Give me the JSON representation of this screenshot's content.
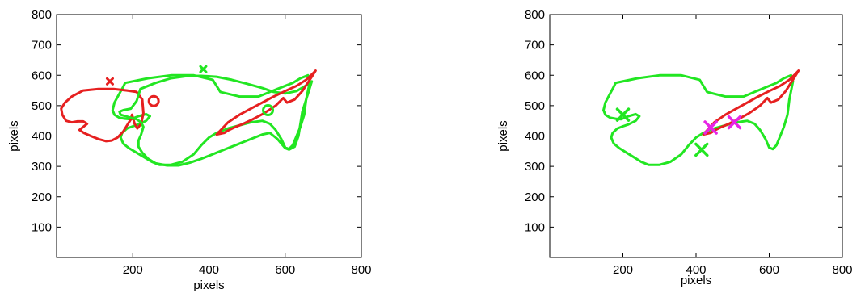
{
  "chart_data": [
    {
      "type": "line",
      "xlabel": "pixels",
      "ylabel": "pixels",
      "xlim": [
        0,
        800
      ],
      "ylim": [
        0,
        800
      ],
      "xticks": [
        200,
        400,
        600,
        800
      ],
      "yticks": [
        100,
        200,
        300,
        400,
        500,
        600,
        700,
        800
      ],
      "grid": false,
      "colors": {
        "green": "#22e622",
        "red": "#e62020",
        "magenta": "#e625e6"
      },
      "series": [
        {
          "color": "green",
          "closed": true,
          "x": [
            180,
            240,
            300,
            360,
            410,
            430,
            480,
            530,
            560,
            590,
            620,
            640,
            660,
            665,
            655,
            650,
            640,
            630,
            620,
            610,
            600,
            590,
            575,
            560,
            540,
            510,
            480,
            450,
            420,
            400,
            380,
            360,
            330,
            300,
            270,
            250,
            230,
            210,
            190,
            175,
            168,
            172,
            185,
            200,
            215,
            235,
            245,
            235,
            215,
            195,
            180,
            165,
            152,
            147,
            152,
            165,
            175,
            180
          ],
          "y": [
            575,
            590,
            600,
            600,
            585,
            545,
            530,
            530,
            545,
            560,
            575,
            590,
            600,
            580,
            520,
            470,
            430,
            400,
            370,
            357,
            362,
            390,
            420,
            440,
            450,
            445,
            435,
            425,
            410,
            395,
            370,
            340,
            315,
            305,
            305,
            315,
            330,
            345,
            360,
            375,
            395,
            410,
            425,
            432,
            438,
            450,
            465,
            472,
            465,
            455,
            457,
            460,
            470,
            485,
            510,
            540,
            562,
            575
          ]
        },
        {
          "color": "red",
          "closed": true,
          "x": [
            40,
            70,
            110,
            150,
            185,
            210,
            225,
            228,
            222,
            212,
            205,
            198,
            195,
            185,
            175,
            160,
            145,
            130,
            110,
            90,
            72,
            60,
            70,
            80,
            70,
            55,
            40,
            25,
            15,
            12,
            22,
            40
          ],
          "y": [
            530,
            550,
            555,
            555,
            550,
            545,
            520,
            475,
            440,
            425,
            440,
            470,
            455,
            435,
            415,
            395,
            385,
            383,
            390,
            400,
            410,
            420,
            430,
            440,
            448,
            448,
            445,
            450,
            470,
            490,
            510,
            530
          ]
        },
        {
          "color": "green",
          "closed": true,
          "x": [
            220,
            260,
            300,
            340,
            380,
            420,
            460,
            500,
            540,
            570,
            600,
            630,
            660,
            670,
            665,
            655,
            645,
            640,
            635,
            625,
            610,
            600,
            590,
            580,
            570,
            560,
            540,
            520,
            500,
            470,
            440,
            420,
            400,
            380,
            350,
            320,
            290,
            260,
            240,
            225,
            215,
            215,
            222,
            228,
            222,
            210,
            190,
            168,
            165,
            175,
            195,
            210,
            220
          ],
          "y": [
            555,
            575,
            590,
            597,
            598,
            595,
            585,
            572,
            558,
            545,
            540,
            548,
            570,
            580,
            560,
            520,
            480,
            440,
            400,
            365,
            355,
            360,
            375,
            390,
            400,
            410,
            405,
            395,
            385,
            370,
            355,
            345,
            335,
            325,
            312,
            303,
            303,
            310,
            325,
            345,
            365,
            385,
            405,
            430,
            445,
            455,
            462,
            470,
            480,
            485,
            490,
            515,
            555
          ]
        },
        {
          "color": "red",
          "closed": true,
          "x": [
            420,
            450,
            480,
            510,
            540,
            570,
            600,
            630,
            655,
            672,
            680,
            670,
            645,
            625,
            605,
            595,
            575,
            545,
            515,
            490,
            470,
            450,
            440,
            420
          ],
          "y": [
            405,
            445,
            470,
            490,
            510,
            530,
            548,
            565,
            585,
            605,
            615,
            595,
            548,
            520,
            510,
            525,
            500,
            475,
            455,
            440,
            430,
            418,
            410,
            405
          ]
        }
      ],
      "markers": [
        {
          "symbol": "x",
          "color": "red",
          "x": 140,
          "y": 580
        },
        {
          "symbol": "x",
          "color": "green",
          "x": 385,
          "y": 620
        },
        {
          "symbol": "o",
          "color": "red",
          "x": 255,
          "y": 515
        },
        {
          "symbol": "o",
          "color": "green",
          "x": 555,
          "y": 485
        }
      ]
    },
    {
      "type": "line",
      "xlabel": "pixels",
      "ylabel": "pixels",
      "xlim": [
        0,
        800
      ],
      "ylim": [
        0,
        800
      ],
      "xticks": [
        200,
        400,
        600,
        800
      ],
      "yticks": [
        100,
        200,
        300,
        400,
        500,
        600,
        700,
        800
      ],
      "grid": false,
      "colors": {
        "green": "#22e622",
        "red": "#e62020",
        "magenta": "#e625e6"
      },
      "series": [
        {
          "color": "green",
          "closed": true,
          "x": [
            180,
            240,
            300,
            360,
            410,
            430,
            480,
            530,
            560,
            590,
            620,
            640,
            660,
            665,
            655,
            650,
            640,
            630,
            620,
            610,
            600,
            590,
            575,
            560,
            540,
            510,
            480,
            450,
            420,
            400,
            380,
            360,
            330,
            300,
            270,
            250,
            230,
            210,
            190,
            175,
            168,
            172,
            185,
            200,
            215,
            235,
            245,
            235,
            215,
            195,
            180,
            165,
            152,
            147,
            152,
            165,
            175,
            180
          ],
          "y": [
            575,
            590,
            600,
            600,
            585,
            545,
            530,
            530,
            545,
            560,
            575,
            590,
            600,
            580,
            520,
            470,
            430,
            400,
            370,
            357,
            362,
            390,
            420,
            440,
            450,
            445,
            435,
            425,
            410,
            395,
            370,
            340,
            315,
            305,
            305,
            315,
            330,
            345,
            360,
            375,
            395,
            410,
            425,
            432,
            438,
            450,
            465,
            472,
            465,
            455,
            457,
            460,
            470,
            485,
            510,
            540,
            562,
            575
          ]
        },
        {
          "color": "red",
          "closed": true,
          "x": [
            420,
            450,
            480,
            510,
            540,
            570,
            600,
            630,
            655,
            672,
            680,
            670,
            645,
            625,
            605,
            595,
            575,
            545,
            515,
            490,
            470,
            450,
            440,
            420
          ],
          "y": [
            405,
            445,
            470,
            490,
            510,
            530,
            548,
            565,
            585,
            605,
            615,
            595,
            548,
            520,
            510,
            525,
            500,
            475,
            455,
            440,
            430,
            418,
            410,
            405
          ]
        }
      ],
      "markers": [
        {
          "symbol": "X",
          "color": "green",
          "x": 200,
          "y": 470
        },
        {
          "symbol": "X",
          "color": "green",
          "x": 415,
          "y": 355
        },
        {
          "symbol": "X",
          "color": "magenta",
          "x": 440,
          "y": 428
        },
        {
          "symbol": "X",
          "color": "magenta",
          "x": 505,
          "y": 445
        }
      ]
    }
  ]
}
